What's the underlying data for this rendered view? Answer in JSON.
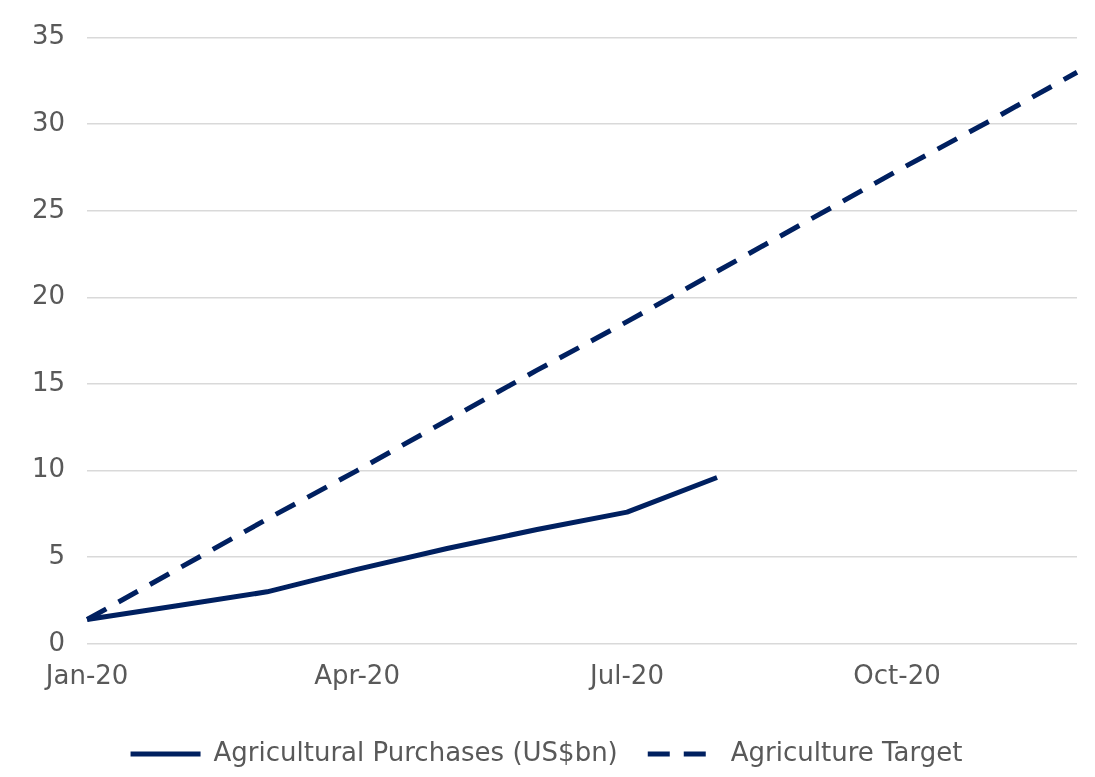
{
  "chart_data": {
    "type": "line",
    "categories": [
      "Jan-20",
      null,
      null,
      "Apr-20",
      null,
      null,
      "Jul-20",
      null,
      null,
      "Oct-20",
      null,
      null
    ],
    "series": [
      {
        "name": "Agricultural Purchases (US$bn)",
        "color": "#002060",
        "line_style": "solid",
        "values": [
          1.4,
          2.2,
          3.0,
          4.3,
          5.5,
          6.6,
          7.6,
          9.6,
          null,
          null,
          null,
          null
        ]
      },
      {
        "name": "Agriculture Target",
        "color": "#002060",
        "line_style": "dashed",
        "values": [
          1.4,
          4.3,
          7.2,
          10.0,
          12.9,
          15.8,
          18.6,
          21.5,
          24.4,
          27.3,
          30.1,
          33.0
        ]
      }
    ],
    "ylim": [
      0,
      35
    ],
    "yticks": [
      0,
      5,
      10,
      15,
      20,
      25,
      30,
      35
    ],
    "grid": "y",
    "legend": "bottom",
    "marker": "none"
  }
}
